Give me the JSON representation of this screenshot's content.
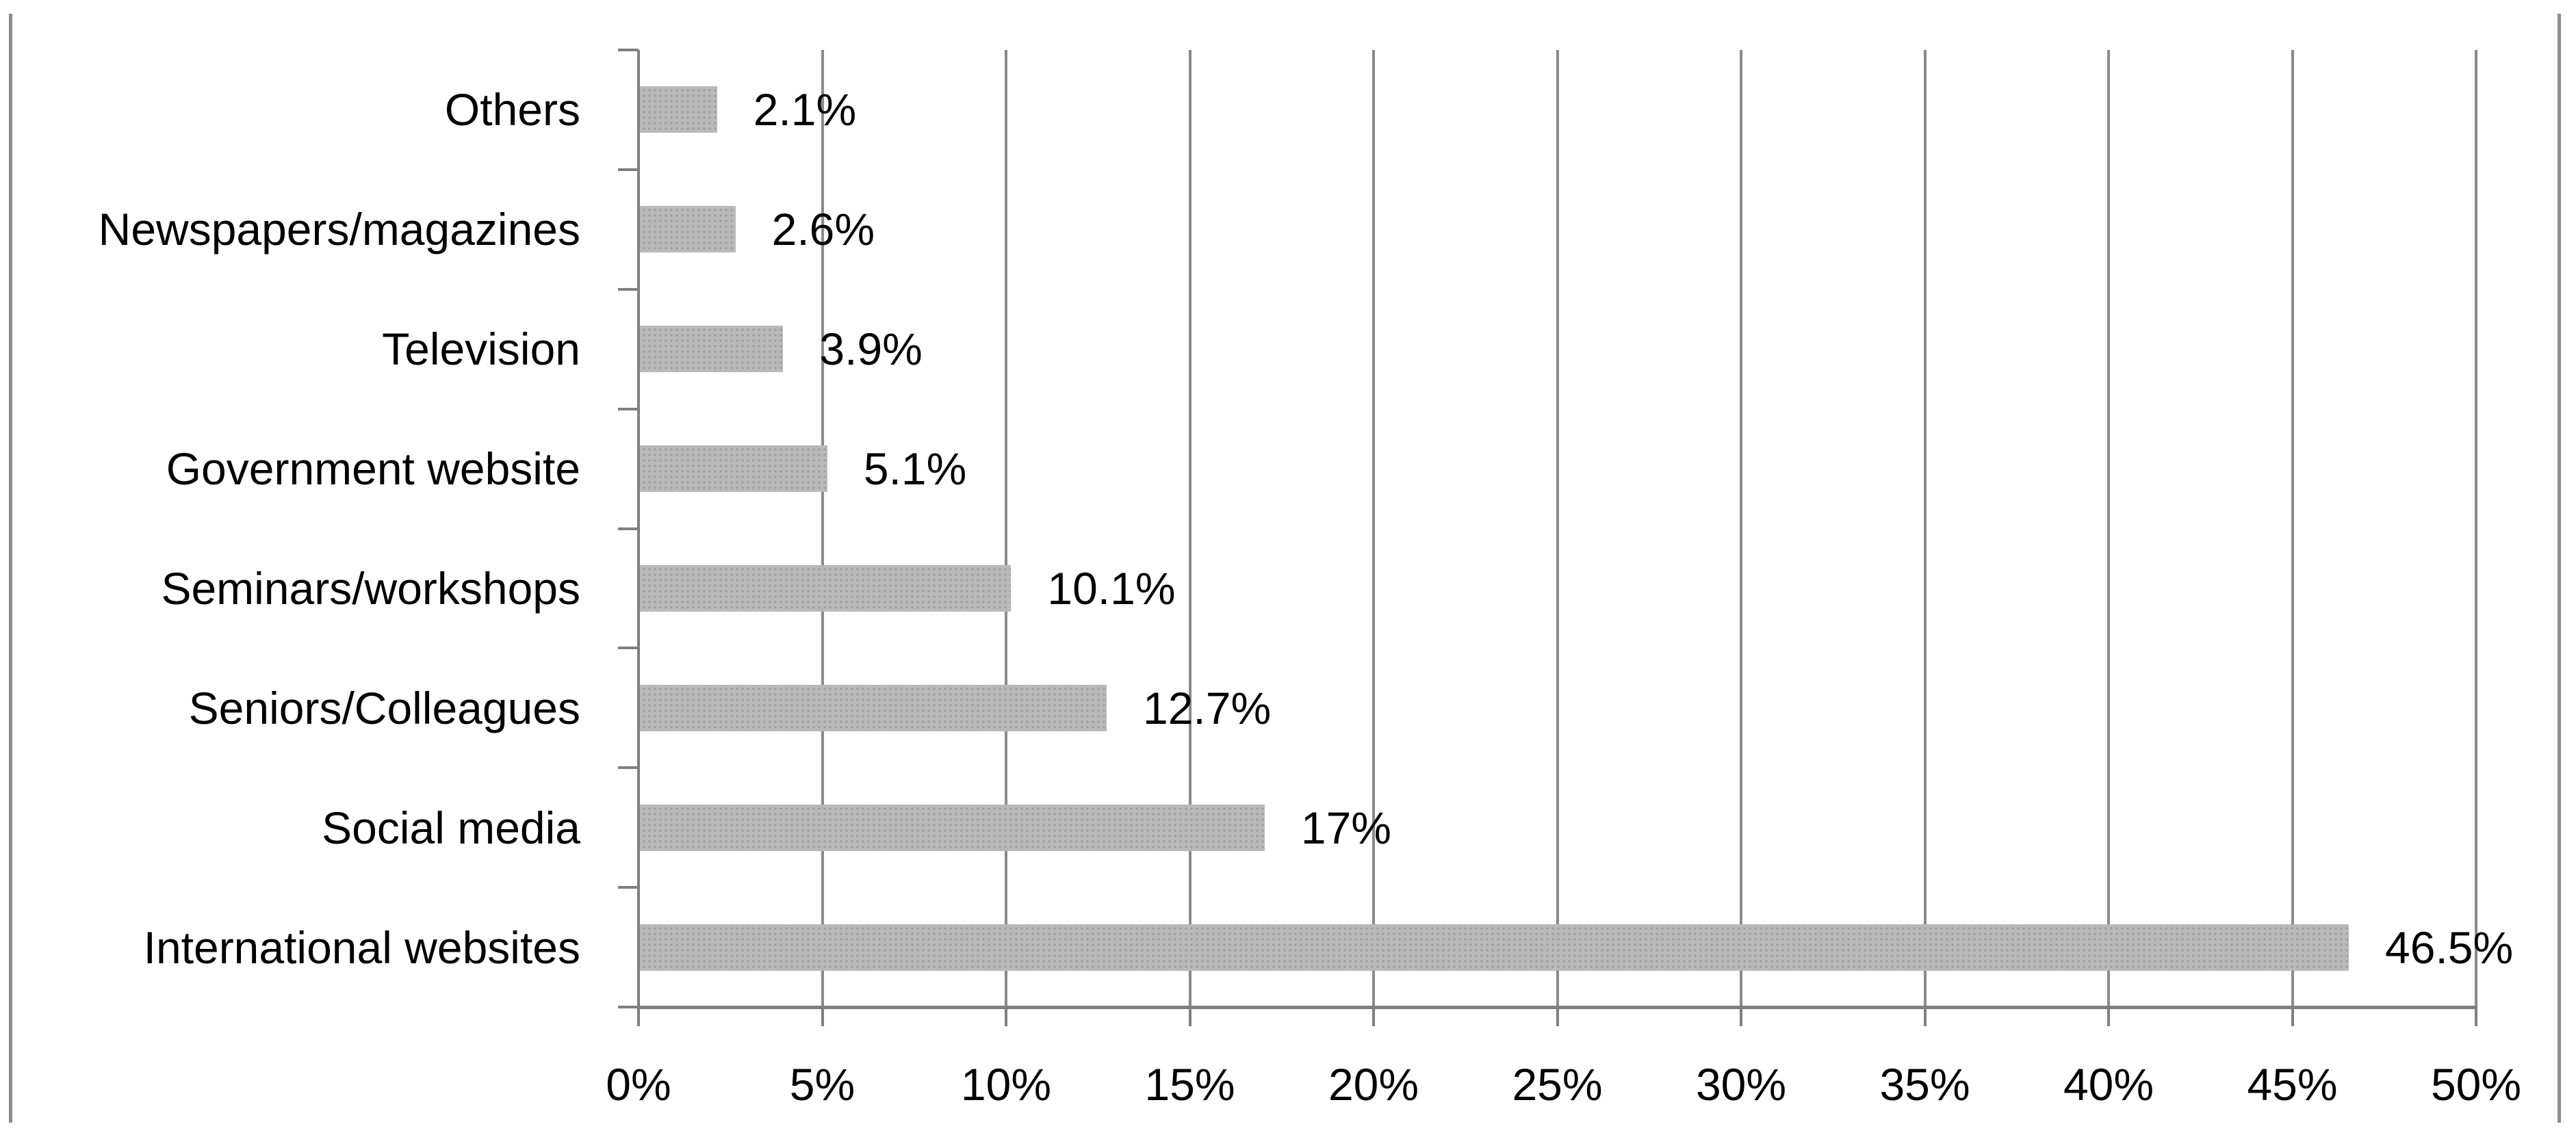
{
  "chart_data": {
    "type": "bar",
    "orientation": "horizontal",
    "title": "",
    "xlabel": "",
    "ylabel": "",
    "categories": [
      "Others",
      "Newspapers/magazines",
      "Television",
      "Government website",
      "Seminars/workshops",
      "Seniors/Colleagues",
      "Social media",
      "International websites"
    ],
    "values": [
      2.1,
      2.6,
      3.9,
      5.1,
      10.1,
      12.7,
      17,
      46.5
    ],
    "value_labels": [
      "2.1%",
      "2.6%",
      "3.9%",
      "5.1%",
      "10.1%",
      "12.7%",
      "17%",
      "46.5%"
    ],
    "x_axis": {
      "range": [
        0,
        50
      ],
      "tick_values": [
        0,
        5,
        10,
        15,
        20,
        25,
        30,
        35,
        40,
        45,
        50
      ],
      "tick_labels": [
        "0%",
        "5%",
        "10%",
        "15%",
        "20%",
        "25%",
        "30%",
        "35%",
        "40%",
        "45%",
        "50%"
      ]
    },
    "grid": true,
    "legend": false,
    "colors": {
      "bar_fill": "#b9b9b9",
      "bar_dots": "#9c9c9c",
      "gridline": "#8a8a8a",
      "axis": "#7f7f7f",
      "text": "#000000",
      "frame_border": "#8c8c8c",
      "background": "#ffffff"
    }
  }
}
